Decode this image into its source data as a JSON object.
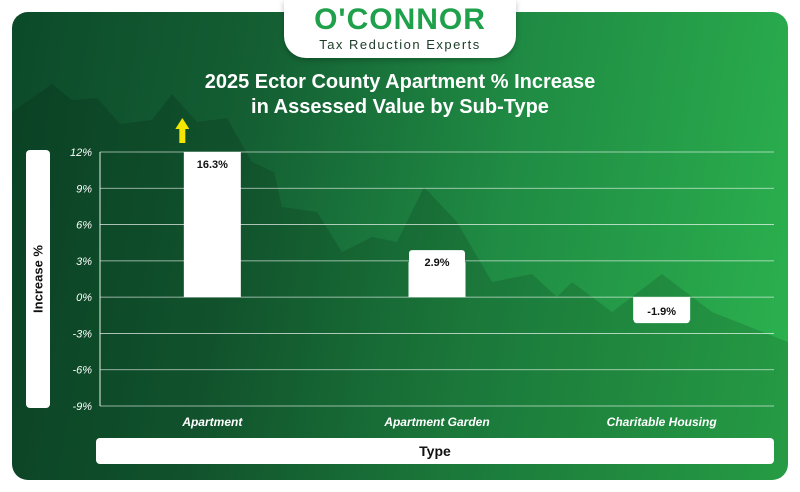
{
  "brand": {
    "name": "O'CONNOR",
    "tagline": "Tax Reduction Experts"
  },
  "chart_data": {
    "type": "bar",
    "title_line1": "2025 Ector County Apartment % Increase",
    "title_line2": "in Assessed Value by Sub-Type",
    "xlabel": "Type",
    "ylabel": "Increase %",
    "categories": [
      "Apartment",
      "Apartment Garden",
      "Charitable Housing"
    ],
    "values": [
      16.3,
      2.9,
      -1.9
    ],
    "data_labels": [
      "16.3%",
      "2.9%",
      "-1.9%"
    ],
    "yticks": [
      12,
      9,
      6,
      3,
      0,
      -3,
      -6,
      -9
    ],
    "ytick_labels": [
      "12%",
      "9%",
      "6%",
      "3%",
      "0%",
      "-3%",
      "-6%",
      "-9%"
    ],
    "ylim": [
      -9,
      12
    ],
    "grid": true,
    "off_scale_indicator": "arrow-up-icon",
    "colors": {
      "bar": "#ffffff",
      "arrow": "#f5e600",
      "brand_green": "#1fa04a"
    }
  }
}
